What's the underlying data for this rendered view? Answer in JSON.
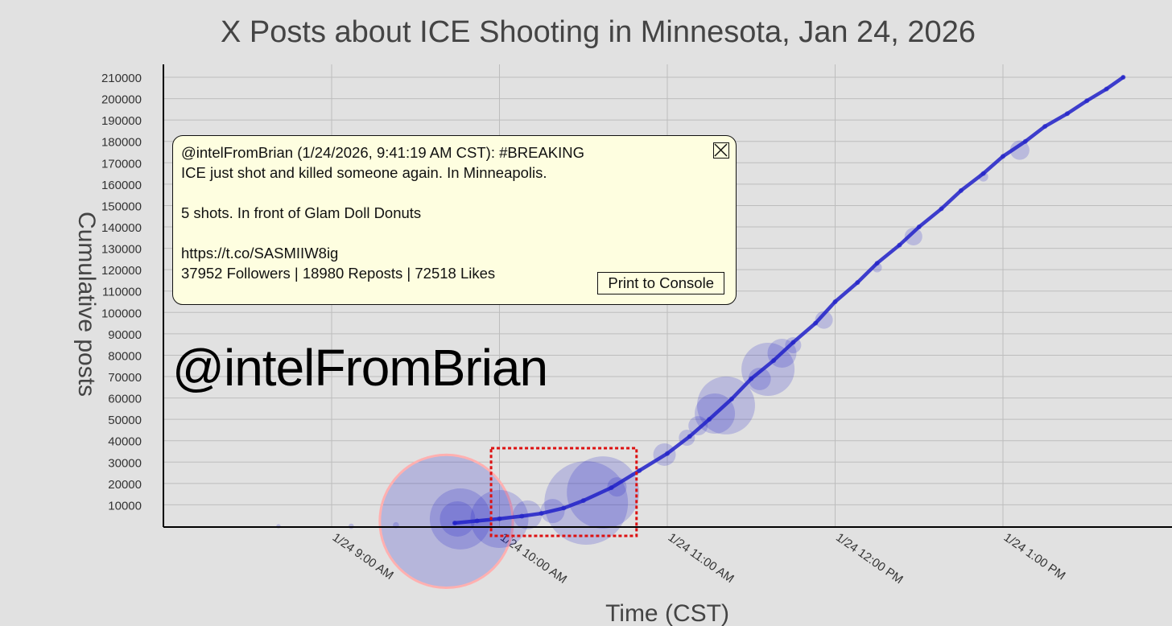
{
  "chart_data": {
    "type": "scatter",
    "title": "X Posts about ICE Shooting in Minnesota, Jan 24, 2026",
    "xlabel": "Time (CST)",
    "ylabel": "Cumulative posts",
    "date": "2026-01-24",
    "xlim": [
      "08:00",
      "14:00"
    ],
    "ylim": [
      0,
      220000
    ],
    "grid": true,
    "x_ticks": [
      {
        "t": "09:00",
        "label": "1/24 9:00 AM"
      },
      {
        "t": "10:00",
        "label": "1/24 10:00 AM"
      },
      {
        "t": "11:00",
        "label": "1/24 11:00 AM"
      },
      {
        "t": "12:00",
        "label": "1/24 12:00 PM"
      },
      {
        "t": "13:00",
        "label": "1/24 1:00 PM"
      }
    ],
    "y_ticks": [
      10000,
      20000,
      30000,
      40000,
      50000,
      60000,
      70000,
      80000,
      90000,
      100000,
      110000,
      120000,
      130000,
      140000,
      150000,
      160000,
      170000,
      180000,
      190000,
      200000,
      210000
    ],
    "cumulative_curve": [
      [
        "09:44",
        1500
      ],
      [
        "09:52",
        2500
      ],
      [
        "10:00",
        3500
      ],
      [
        "10:08",
        4700
      ],
      [
        "10:15",
        6000
      ],
      [
        "10:23",
        8500
      ],
      [
        "10:30",
        12000
      ],
      [
        "10:40",
        18000
      ],
      [
        "10:50",
        26000
      ],
      [
        "11:00",
        34000
      ],
      [
        "11:08",
        42000
      ],
      [
        "11:15",
        50000
      ],
      [
        "11:23",
        59500
      ],
      [
        "11:30",
        69000
      ],
      [
        "11:38",
        77500
      ],
      [
        "11:45",
        86000
      ],
      [
        "11:53",
        95000
      ],
      [
        "12:00",
        105000
      ],
      [
        "12:08",
        114000
      ],
      [
        "12:15",
        123000
      ],
      [
        "12:23",
        131500
      ],
      [
        "12:30",
        140000
      ],
      [
        "12:38",
        148500
      ],
      [
        "12:45",
        157000
      ],
      [
        "12:53",
        165000
      ],
      [
        "13:00",
        173000
      ],
      [
        "13:08",
        180000
      ],
      [
        "13:15",
        187000
      ],
      [
        "13:23",
        193000
      ],
      [
        "13:30",
        199000
      ],
      [
        "13:37",
        204500
      ],
      [
        "13:43",
        210000
      ]
    ],
    "bubble_size_field": "reposts",
    "color": "#2020c8",
    "bubbles": [
      {
        "t": "08:41",
        "y": 0,
        "reposts": 20
      },
      {
        "t": "09:07",
        "y": 0,
        "reposts": 30
      },
      {
        "t": "09:23",
        "y": 500,
        "reposts": 40
      },
      {
        "t": "09:41",
        "y": 2300,
        "reposts": 18980,
        "selected": true
      },
      {
        "t": "09:45",
        "y": 3400,
        "reposts": 1344
      },
      {
        "t": "09:46",
        "y": 3400,
        "reposts": 4000
      },
      {
        "t": "10:00",
        "y": 3400,
        "reposts": 3600
      },
      {
        "t": "10:10",
        "y": 5300,
        "reposts": 900
      },
      {
        "t": "10:19",
        "y": 7100,
        "reposts": 625
      },
      {
        "t": "10:31",
        "y": 10900,
        "reposts": 7500
      },
      {
        "t": "10:37",
        "y": 15800,
        "reposts": 5600
      },
      {
        "t": "10:42",
        "y": 18400,
        "reposts": 400
      },
      {
        "t": "10:59",
        "y": 33500,
        "reposts": 544
      },
      {
        "t": "11:07",
        "y": 41400,
        "reposts": 278
      },
      {
        "t": "11:11",
        "y": 47000,
        "reposts": 400
      },
      {
        "t": "11:17",
        "y": 52700,
        "reposts": 1736
      },
      {
        "t": "11:21",
        "y": 56500,
        "reposts": 3600
      },
      {
        "t": "11:33",
        "y": 68900,
        "reposts": 544
      },
      {
        "t": "11:36",
        "y": 73400,
        "reposts": 3025
      },
      {
        "t": "11:41",
        "y": 80900,
        "reposts": 900
      },
      {
        "t": "11:45",
        "y": 84700,
        "reposts": 278
      },
      {
        "t": "11:56",
        "y": 96500,
        "reposts": 336
      },
      {
        "t": "12:15",
        "y": 121000,
        "reposts": 100
      },
      {
        "t": "12:28",
        "y": 135500,
        "reposts": 336
      },
      {
        "t": "12:53",
        "y": 163500,
        "reposts": 100
      },
      {
        "t": "13:06",
        "y": 175900,
        "reposts": 400
      }
    ],
    "annotations": [
      {
        "type": "dotted-rectangle",
        "color": "#dd1111",
        "t_range": [
          "09:57",
          "10:49"
        ],
        "y_range": [
          -4500,
          36500
        ]
      }
    ],
    "selected_color": "#ffb0b0"
  },
  "tooltip": {
    "header": "@intelFromBrian (1/24/2026, 9:41:19 AM CST): #BREAKING",
    "body": "ICE just shot and killed someone again. In Minneapolis.\n\n5 shots. In front of Glam Doll Donuts\n\nhttps://t.co/SASMIIW8ig",
    "stats": "37952 Followers | 18980 Reposts | 72518 Likes",
    "print_button": "Print to Console",
    "close_icon": "close-box-icon"
  },
  "watermark": "@intelFromBrian"
}
